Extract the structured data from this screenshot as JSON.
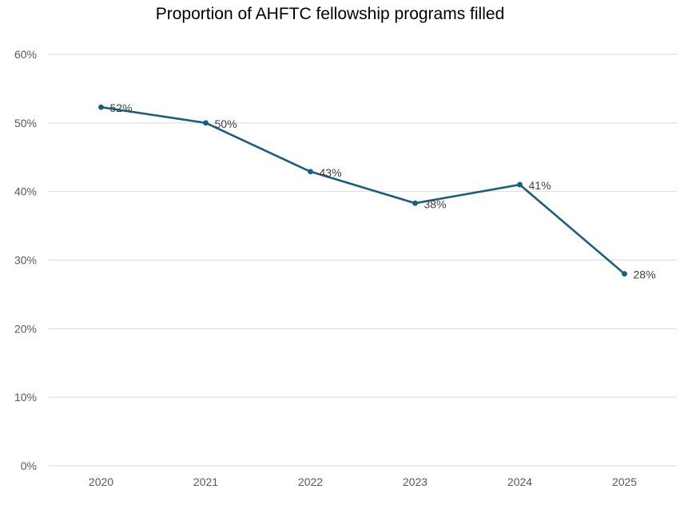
{
  "chart_data": {
    "type": "line",
    "title": "Proportion of AHFTC fellowship programs filled",
    "xlabel": "",
    "ylabel": "",
    "categories": [
      "2020",
      "2021",
      "2022",
      "2023",
      "2024",
      "2025"
    ],
    "series": [
      {
        "values": [
          52.3,
          50.0,
          42.9,
          38.3,
          41.0,
          28.0
        ],
        "data_labels": [
          "52%",
          "50%",
          "43%",
          "38%",
          "41%",
          "28%"
        ],
        "color": "#1b5e7e"
      }
    ],
    "ylim": [
      0,
      60
    ],
    "yticks": [
      "0%",
      "10%",
      "20%",
      "30%",
      "40%",
      "50%",
      "60%"
    ],
    "grid": true,
    "legend": "none"
  }
}
